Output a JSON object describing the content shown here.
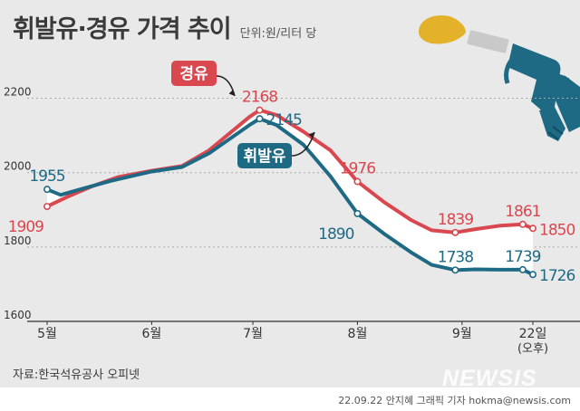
{
  "header": {
    "title": "휘발유·경유 가격 추이",
    "unit": "단위:원/리터 당"
  },
  "footer": {
    "source": "자료:한국석유공사 오피넷",
    "credit": "22.09.22 안지혜 그래픽 기자 hokma@newsis.com",
    "watermark": "NEWSIS"
  },
  "colors": {
    "diesel": "#d9474f",
    "gasoline": "#1e6a85",
    "band": "#ffffff",
    "diesel_tag": "#d9474f",
    "gasoline_tag": "#1e6a85"
  },
  "icon": "fuel-nozzle-icon",
  "chart_data": {
    "type": "line",
    "title": "휘발유·경유 가격 추이",
    "ylabel": "",
    "xlabel": "",
    "ylim": [
      1600,
      2250
    ],
    "yticks": [
      1600,
      1800,
      2000,
      2200
    ],
    "grid": true,
    "x_range": [
      "2022-05-01",
      "2022-09-22"
    ],
    "x_ticks": [
      {
        "date": "2022-05-01",
        "label": "5월"
      },
      {
        "date": "2022-06-01",
        "label": "6월"
      },
      {
        "date": "2022-07-01",
        "label": "7월"
      },
      {
        "date": "2022-08-01",
        "label": "8월"
      },
      {
        "date": "2022-09-01",
        "label": "9월"
      },
      {
        "date": "2022-09-22",
        "label": "22일",
        "sub": "(오후)"
      }
    ],
    "series": [
      {
        "name": "경유",
        "points": [
          [
            "2022-05-01",
            1909
          ],
          [
            "2022-05-07",
            1935
          ],
          [
            "2022-05-14",
            1962
          ],
          [
            "2022-05-22",
            1988
          ],
          [
            "2022-06-01",
            2005
          ],
          [
            "2022-06-10",
            2018
          ],
          [
            "2022-06-18",
            2060
          ],
          [
            "2022-06-24",
            2105
          ],
          [
            "2022-06-30",
            2150
          ],
          [
            "2022-07-03",
            2168
          ],
          [
            "2022-07-08",
            2155
          ],
          [
            "2022-07-16",
            2110
          ],
          [
            "2022-07-24",
            2060
          ],
          [
            "2022-08-01",
            1976
          ],
          [
            "2022-08-09",
            1920
          ],
          [
            "2022-08-17",
            1872
          ],
          [
            "2022-08-23",
            1845
          ],
          [
            "2022-08-30",
            1839
          ],
          [
            "2022-09-05",
            1848
          ],
          [
            "2022-09-12",
            1857
          ],
          [
            "2022-09-19",
            1861
          ],
          [
            "2022-09-22",
            1850
          ]
        ],
        "labels": [
          {
            "date": "2022-05-01",
            "value": 1909,
            "pos": "left-below"
          },
          {
            "date": "2022-07-03",
            "value": 2168,
            "pos": "above"
          },
          {
            "date": "2022-08-01",
            "value": 1976,
            "pos": "above"
          },
          {
            "date": "2022-08-30",
            "value": 1839,
            "pos": "above"
          },
          {
            "date": "2022-09-19",
            "value": 1861,
            "pos": "above"
          },
          {
            "date": "2022-09-22",
            "value": 1850,
            "pos": "right"
          }
        ]
      },
      {
        "name": "휘발유",
        "points": [
          [
            "2022-05-01",
            1955
          ],
          [
            "2022-05-05",
            1940
          ],
          [
            "2022-05-12",
            1958
          ],
          [
            "2022-05-20",
            1978
          ],
          [
            "2022-06-01",
            2003
          ],
          [
            "2022-06-10",
            2015
          ],
          [
            "2022-06-18",
            2052
          ],
          [
            "2022-06-24",
            2090
          ],
          [
            "2022-06-30",
            2128
          ],
          [
            "2022-07-03",
            2145
          ],
          [
            "2022-07-08",
            2128
          ],
          [
            "2022-07-16",
            2075
          ],
          [
            "2022-07-24",
            1990
          ],
          [
            "2022-08-01",
            1890
          ],
          [
            "2022-08-09",
            1835
          ],
          [
            "2022-08-17",
            1785
          ],
          [
            "2022-08-23",
            1752
          ],
          [
            "2022-08-30",
            1738
          ],
          [
            "2022-09-05",
            1740
          ],
          [
            "2022-09-12",
            1739
          ],
          [
            "2022-09-19",
            1739
          ],
          [
            "2022-09-22",
            1726
          ]
        ],
        "labels": [
          {
            "date": "2022-05-01",
            "value": 1955,
            "pos": "above"
          },
          {
            "date": "2022-07-03",
            "value": 2145,
            "pos": "right"
          },
          {
            "date": "2022-08-01",
            "value": 1890,
            "pos": "left-below"
          },
          {
            "date": "2022-08-30",
            "value": 1738,
            "pos": "above"
          },
          {
            "date": "2022-09-19",
            "value": 1739,
            "pos": "above"
          },
          {
            "date": "2022-09-22",
            "value": 1726,
            "pos": "right"
          }
        ]
      }
    ]
  }
}
